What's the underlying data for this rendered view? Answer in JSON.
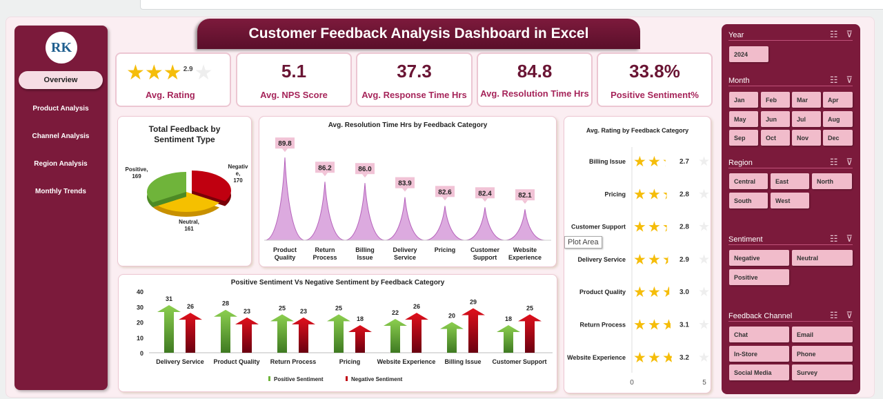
{
  "title": "Customer Feedback Analysis Dashboard in Excel",
  "logo_text": "RK",
  "sidebar": {
    "items": [
      {
        "label": "Overview",
        "active": true
      },
      {
        "label": "Product Analysis"
      },
      {
        "label": "Channel Analysis"
      },
      {
        "label": "Region Analysis"
      },
      {
        "label": "Monthly Trends"
      }
    ]
  },
  "kpis": [
    {
      "value": "2.9",
      "label": "Avg. Rating",
      "rating": 2.9
    },
    {
      "value": "5.1",
      "label": "Avg. NPS Score"
    },
    {
      "value": "37.3",
      "label": "Avg. Response Time Hrs"
    },
    {
      "value": "84.8",
      "label": "Avg. Resolution Time Hrs"
    },
    {
      "value": "33.8%",
      "label": "Positive Sentiment%"
    }
  ],
  "tooltip": "Plot Area",
  "colors": {
    "maroon": "#7b1a3b",
    "pink": "#f1bccb",
    "gold": "#f5bd0a",
    "positive": "#6fb43a",
    "negative": "#c00010",
    "neutral": "#f5c000",
    "violin": "#dcaadf"
  },
  "chart_data": [
    {
      "type": "pie",
      "title": "Total Feedback by Sentiment Type",
      "categories": [
        "Negative",
        "Neutral",
        "Positive"
      ],
      "values": [
        170,
        161,
        169
      ],
      "labels": [
        "Negativ e, 170",
        "Neutral, 161",
        "Positive, 169"
      ]
    },
    {
      "type": "area",
      "title": "Avg. Resolution Time Hrs by Feedback Category",
      "categories": [
        "Product Quality",
        "Return Process",
        "Billing Issue",
        "Delivery Service",
        "Pricing",
        "Customer Support",
        "Website Experience"
      ],
      "values": [
        89.8,
        86.2,
        86.0,
        83.9,
        82.6,
        82.4,
        82.1
      ],
      "labels": [
        "89.8",
        "86.2",
        "86.0",
        "83.9",
        "82.6",
        "82.4",
        "82.1"
      ]
    },
    {
      "type": "bar",
      "title": "Avg. Rating by Feedback Category",
      "categories": [
        "Billing Issue",
        "Pricing",
        "Customer Support",
        "Delivery Service",
        "Product Quality",
        "Return Process",
        "Website Experience"
      ],
      "values": [
        2.7,
        2.8,
        2.8,
        2.9,
        3.0,
        3.1,
        3.2
      ],
      "labels": [
        "2.7",
        "2.8",
        "2.8",
        "2.9",
        "3.0",
        "3.1",
        "3.2"
      ],
      "xlim": [
        0,
        5
      ],
      "xticks": [
        "0",
        "5"
      ]
    },
    {
      "type": "bar",
      "title": "Positive Sentiment Vs Negative Sentiment by Feedback Category",
      "categories": [
        "Delivery Service",
        "Product Quality",
        "Return Process",
        "Pricing",
        "Website Experience",
        "Billing Issue",
        "Customer Support"
      ],
      "series": [
        {
          "name": "Positive Sentiment",
          "values": [
            31,
            28,
            25,
            25,
            22,
            20,
            18
          ]
        },
        {
          "name": "Negative Sentiment",
          "values": [
            26,
            23,
            23,
            18,
            26,
            29,
            25
          ]
        }
      ],
      "ylim": [
        0,
        40
      ],
      "yticks": [
        "0",
        "10",
        "20",
        "30",
        "40"
      ],
      "legend": "bottom"
    }
  ],
  "slicers": [
    {
      "title": "Year",
      "items": [
        "2024"
      ]
    },
    {
      "title": "Month",
      "items": [
        "Jan",
        "Feb",
        "Mar",
        "Apr",
        "May",
        "Jun",
        "Jul",
        "Aug",
        "Sep",
        "Oct",
        "Nov",
        "Dec"
      ]
    },
    {
      "title": "Region",
      "items": [
        "Central",
        "East",
        "North",
        "South",
        "West"
      ]
    },
    {
      "title": "Sentiment",
      "items": [
        "Negative",
        "Neutral",
        "Positive"
      ]
    },
    {
      "title": "Feedback Channel",
      "items": [
        "Chat",
        "Email",
        "In-Store",
        "Phone",
        "Social Media",
        "Survey"
      ]
    }
  ]
}
